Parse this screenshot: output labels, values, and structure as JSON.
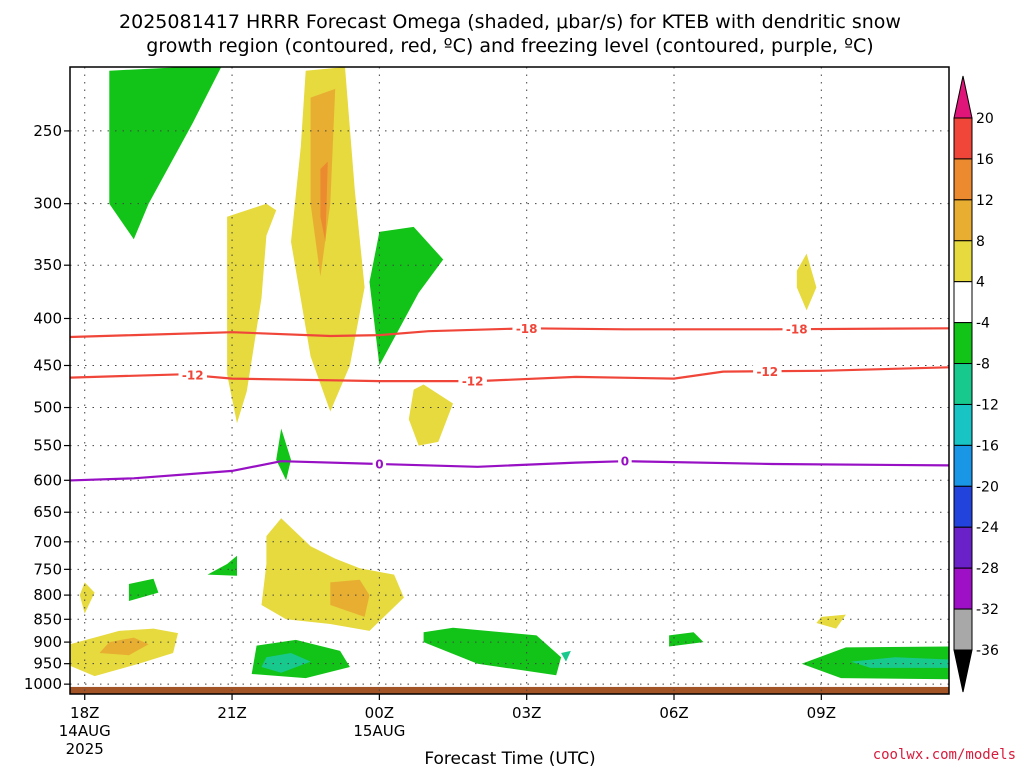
{
  "chart_data": {
    "type": "heatmap",
    "title_line1": "2025081417 HRRR Forecast Omega (shaded, μbar/s) for KTEB with dendritic snow",
    "title_line2": "growth region (contoured, red, ºC) and freezing level (contoured, purple, ºC)",
    "xlabel": "Forecast Time (UTC)",
    "x_range_hours": [
      -0.3,
      17.6
    ],
    "y_range_hpa": [
      213,
      1025
    ],
    "y_log_scale": true,
    "grid": true,
    "x_ticks": [
      {
        "hour": 0,
        "label": "18Z",
        "date": "14AUG",
        "year": "2025"
      },
      {
        "hour": 3,
        "label": "21Z",
        "date": "",
        "year": ""
      },
      {
        "hour": 6,
        "label": "00Z",
        "date": "15AUG",
        "year": ""
      },
      {
        "hour": 9,
        "label": "03Z",
        "date": "",
        "year": ""
      },
      {
        "hour": 12,
        "label": "06Z",
        "date": "",
        "year": ""
      },
      {
        "hour": 15,
        "label": "09Z",
        "date": "",
        "year": ""
      }
    ],
    "y_ticks": [
      {
        "p": 250,
        "label": "250"
      },
      {
        "p": 300,
        "label": "300"
      },
      {
        "p": 350,
        "label": "350"
      },
      {
        "p": 400,
        "label": "400"
      },
      {
        "p": 450,
        "label": "450"
      },
      {
        "p": 500,
        "label": "500"
      },
      {
        "p": 550,
        "label": "550"
      },
      {
        "p": 600,
        "label": "600"
      },
      {
        "p": 650,
        "label": "650"
      },
      {
        "p": 700,
        "label": "700"
      },
      {
        "p": 750,
        "label": "750"
      },
      {
        "p": 800,
        "label": "800"
      },
      {
        "p": 850,
        "label": "850"
      },
      {
        "p": 900,
        "label": "900"
      },
      {
        "p": 950,
        "label": "950"
      },
      {
        "p": 1000,
        "label": "1000"
      }
    ],
    "colorbar": {
      "levels": [
        {
          "min": 20,
          "max": 24,
          "color": "#e0157a"
        },
        {
          "min": 16,
          "max": 20,
          "color": "#f0463a"
        },
        {
          "min": 12,
          "max": 16,
          "color": "#ec8a30"
        },
        {
          "min": 8,
          "max": 12,
          "color": "#e8ae32"
        },
        {
          "min": 4,
          "max": 8,
          "color": "#e6da3e"
        },
        {
          "min": -4,
          "max": 4,
          "color": "#ffffff"
        },
        {
          "min": -8,
          "max": -4,
          "color": "#12c417"
        },
        {
          "min": -12,
          "max": -8,
          "color": "#18c98e"
        },
        {
          "min": -16,
          "max": -12,
          "color": "#18c4c4"
        },
        {
          "min": -20,
          "max": -16,
          "color": "#1a96e6"
        },
        {
          "min": -24,
          "max": -20,
          "color": "#2244dc"
        },
        {
          "min": -28,
          "max": -24,
          "color": "#6a22c8"
        },
        {
          "min": -32,
          "max": -28,
          "color": "#9e10c6"
        },
        {
          "min": -36,
          "max": -32,
          "color": "#a8a8a8"
        },
        {
          "min": -40,
          "max": -36,
          "color": "#000000"
        }
      ],
      "tick_labels": [
        "20",
        "16",
        "12",
        "8",
        "4",
        "-4",
        "-8",
        "-12",
        "-16",
        "-20",
        "-24",
        "-28",
        "-32",
        "-36"
      ]
    },
    "contours": [
      {
        "name": "-18",
        "color": "#f0463a",
        "points": [
          [
            -1,
            420
          ],
          [
            1,
            417
          ],
          [
            3,
            414
          ],
          [
            5,
            418
          ],
          [
            6,
            417
          ],
          [
            7,
            413
          ],
          [
            9,
            410
          ],
          [
            11,
            411
          ],
          [
            14,
            411
          ],
          [
            17.6,
            410
          ]
        ],
        "labels": [
          {
            "hour": 9,
            "text": "-18"
          },
          {
            "hour": 14.5,
            "text": "-18"
          }
        ]
      },
      {
        "name": "-12",
        "color": "#f0463a",
        "points": [
          [
            -1,
            465
          ],
          [
            2,
            460
          ],
          [
            3,
            465
          ],
          [
            6,
            468
          ],
          [
            8,
            468
          ],
          [
            10,
            463
          ],
          [
            12,
            465
          ],
          [
            13,
            457
          ],
          [
            15,
            456
          ],
          [
            17.6,
            452
          ]
        ],
        "labels": [
          {
            "hour": 2.2,
            "text": "-12"
          },
          {
            "hour": 7.9,
            "text": "-12"
          },
          {
            "hour": 13.9,
            "text": "-12"
          }
        ]
      },
      {
        "name": "0",
        "color": "#9810c4",
        "points": [
          [
            -1,
            602
          ],
          [
            1,
            597
          ],
          [
            3,
            586
          ],
          [
            4,
            572
          ],
          [
            6,
            576
          ],
          [
            8,
            580
          ],
          [
            10,
            574
          ],
          [
            11,
            572
          ],
          [
            14,
            576
          ],
          [
            17.6,
            578
          ]
        ],
        "labels": [
          {
            "hour": 6,
            "text": "0"
          },
          {
            "hour": 11,
            "text": "0"
          }
        ]
      }
    ],
    "omega_regions": [
      {
        "value": -5,
        "points": [
          [
            0.5,
            215
          ],
          [
            2.8,
            212
          ],
          [
            2.2,
            245
          ],
          [
            1.3,
            300
          ],
          [
            1.0,
            328
          ],
          [
            0.5,
            300
          ]
        ]
      },
      {
        "value": -5,
        "points": [
          [
            6.0,
            322
          ],
          [
            6.7,
            318
          ],
          [
            7.3,
            345
          ],
          [
            6.8,
            375
          ],
          [
            6.0,
            450
          ],
          [
            5.8,
            365
          ]
        ]
      },
      {
        "value": -5,
        "points": [
          [
            4.0,
            527
          ],
          [
            4.2,
            570
          ],
          [
            4.1,
            600
          ],
          [
            3.9,
            570
          ]
        ]
      },
      {
        "value": -5,
        "points": [
          [
            2.9,
            740
          ],
          [
            3.1,
            725
          ],
          [
            3.1,
            762
          ],
          [
            2.5,
            760
          ]
        ]
      },
      {
        "value": -5,
        "points": [
          [
            0.9,
            778
          ],
          [
            1.4,
            768
          ],
          [
            1.5,
            795
          ],
          [
            0.9,
            812
          ]
        ]
      },
      {
        "value": -5,
        "points": [
          [
            3.5,
            908
          ],
          [
            4.3,
            895
          ],
          [
            5.2,
            920
          ],
          [
            5.4,
            958
          ],
          [
            4.5,
            985
          ],
          [
            3.4,
            975
          ]
        ]
      },
      {
        "value": -5,
        "points": [
          [
            6.9,
            878
          ],
          [
            7.5,
            868
          ],
          [
            9.2,
            885
          ],
          [
            9.7,
            935
          ],
          [
            9.6,
            978
          ],
          [
            8.0,
            950
          ],
          [
            6.9,
            900
          ]
        ]
      },
      {
        "value": -5,
        "points": [
          [
            11.9,
            885
          ],
          [
            12.4,
            878
          ],
          [
            12.6,
            900
          ],
          [
            11.9,
            910
          ]
        ]
      },
      {
        "value": -5,
        "points": [
          [
            14.6,
            950
          ],
          [
            15.5,
            912
          ],
          [
            17.6,
            910
          ],
          [
            17.6,
            988
          ],
          [
            15.4,
            985
          ]
        ]
      },
      {
        "value": -9,
        "points": [
          [
            3.7,
            935
          ],
          [
            4.2,
            925
          ],
          [
            4.6,
            945
          ],
          [
            4.0,
            972
          ],
          [
            3.6,
            958
          ]
        ]
      },
      {
        "value": -9,
        "points": [
          [
            15.6,
            945
          ],
          [
            16.5,
            935
          ],
          [
            17.6,
            940
          ],
          [
            17.6,
            960
          ],
          [
            16.0,
            960
          ]
        ]
      },
      {
        "value": -9,
        "points": [
          [
            9.7,
            925
          ],
          [
            9.9,
            920
          ],
          [
            9.8,
            945
          ]
        ]
      },
      {
        "value": 5,
        "points": [
          [
            4.5,
            215
          ],
          [
            5.3,
            213
          ],
          [
            5.5,
            290
          ],
          [
            5.7,
            370
          ],
          [
            5.4,
            450
          ],
          [
            5.0,
            505
          ],
          [
            4.6,
            440
          ],
          [
            4.2,
            330
          ],
          [
            4.4,
            260
          ]
        ]
      },
      {
        "value": 5,
        "points": [
          [
            2.9,
            310
          ],
          [
            3.7,
            300
          ],
          [
            3.9,
            305
          ],
          [
            3.7,
            325
          ],
          [
            3.6,
            380
          ],
          [
            3.3,
            480
          ],
          [
            3.1,
            520
          ],
          [
            2.9,
            460
          ]
        ]
      },
      {
        "value": 5,
        "points": [
          [
            6.7,
            478
          ],
          [
            6.9,
            472
          ],
          [
            7.5,
            495
          ],
          [
            7.2,
            545
          ],
          [
            6.8,
            550
          ],
          [
            6.6,
            515
          ]
        ]
      },
      {
        "value": 5,
        "points": [
          [
            15.0,
            845
          ],
          [
            15.5,
            840
          ],
          [
            15.3,
            870
          ],
          [
            14.9,
            858
          ]
        ]
      },
      {
        "value": 5,
        "points": [
          [
            14.5,
            355
          ],
          [
            14.7,
            340
          ],
          [
            14.9,
            370
          ],
          [
            14.7,
            392
          ],
          [
            14.5,
            370
          ]
        ]
      },
      {
        "value": 5,
        "points": [
          [
            3.7,
            690
          ],
          [
            4.0,
            660
          ],
          [
            4.6,
            708
          ],
          [
            5.1,
            730
          ],
          [
            5.6,
            748
          ],
          [
            6.3,
            760
          ],
          [
            6.5,
            805
          ],
          [
            5.8,
            875
          ],
          [
            5.0,
            860
          ],
          [
            4.1,
            850
          ],
          [
            3.6,
            820
          ],
          [
            3.7,
            740
          ]
        ]
      },
      {
        "value": 5,
        "points": [
          [
            -0.3,
            905
          ],
          [
            0.7,
            875
          ],
          [
            1.4,
            870
          ],
          [
            1.9,
            880
          ],
          [
            1.8,
            925
          ],
          [
            1.1,
            950
          ],
          [
            0.2,
            980
          ],
          [
            -0.3,
            955
          ]
        ]
      },
      {
        "value": 5,
        "points": [
          [
            0.0,
            775
          ],
          [
            0.2,
            795
          ],
          [
            0.0,
            838
          ],
          [
            -0.1,
            800
          ]
        ]
      },
      {
        "value": 9,
        "points": [
          [
            4.6,
            230
          ],
          [
            5.1,
            225
          ],
          [
            5.0,
            300
          ],
          [
            4.8,
            360
          ],
          [
            4.6,
            300
          ]
        ]
      },
      {
        "value": 9,
        "points": [
          [
            5.0,
            775
          ],
          [
            5.6,
            770
          ],
          [
            5.8,
            800
          ],
          [
            5.7,
            845
          ],
          [
            5.0,
            820
          ]
        ]
      },
      {
        "value": 9,
        "points": [
          [
            0.5,
            900
          ],
          [
            1.0,
            890
          ],
          [
            1.3,
            905
          ],
          [
            0.9,
            930
          ],
          [
            0.3,
            925
          ]
        ]
      },
      {
        "value": 13,
        "points": [
          [
            4.8,
            275
          ],
          [
            4.95,
            270
          ],
          [
            4.9,
            330
          ],
          [
            4.8,
            310
          ]
        ]
      }
    ],
    "ground": {
      "p_top": 1007,
      "color": "#a35427"
    }
  },
  "credit": "coolwx.com/models"
}
